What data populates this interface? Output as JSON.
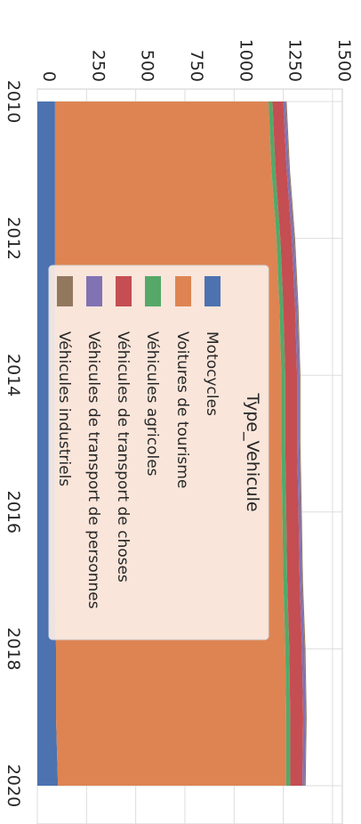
{
  "chart_data": {
    "type": "area",
    "stacked": true,
    "orientation": "rotated-90-clockwise",
    "x": [
      2010,
      2011,
      2012,
      2013,
      2014,
      2015,
      2016,
      2017,
      2018,
      2019,
      2020
    ],
    "x_ticks": [
      "2010",
      "2012",
      "2014",
      "2016",
      "2018",
      "2020"
    ],
    "y_ticks": [
      "0",
      "250",
      "500",
      "750",
      "1000",
      "1250",
      "1500"
    ],
    "ylim": [
      0,
      1550
    ],
    "xlim": [
      2010,
      2020.3
    ],
    "grid": true,
    "legend": {
      "title": "Type_Vehicule",
      "placement": "center-left"
    },
    "series": [
      {
        "name": "Motocycles",
        "color": "#4c72b0",
        "values": [
          90,
          90,
          90,
          90,
          90,
          90,
          90,
          90,
          95,
          95,
          105
        ]
      },
      {
        "name": "Voitures de tourisme",
        "color": "#dd8452",
        "values": [
          1085,
          1100,
          1125,
          1140,
          1150,
          1150,
          1155,
          1160,
          1165,
          1170,
          1160
        ]
      },
      {
        "name": "Véhicules agricoles",
        "color": "#55a868",
        "values": [
          20,
          20,
          20,
          20,
          20,
          20,
          20,
          20,
          20,
          20,
          20
        ]
      },
      {
        "name": "Véhicules de transport de choses",
        "color": "#c44e52",
        "values": [
          55,
          57,
          58,
          60,
          60,
          60,
          62,
          63,
          65,
          66,
          62
        ]
      },
      {
        "name": "Véhicules de transport de personnes",
        "color": "#8172b3",
        "values": [
          12,
          12,
          12,
          12,
          12,
          12,
          12,
          12,
          13,
          13,
          12
        ]
      },
      {
        "name": "Véhicules industriels",
        "color": "#937860",
        "values": [
          5,
          5,
          5,
          5,
          5,
          5,
          5,
          5,
          5,
          5,
          5
        ]
      }
    ]
  }
}
